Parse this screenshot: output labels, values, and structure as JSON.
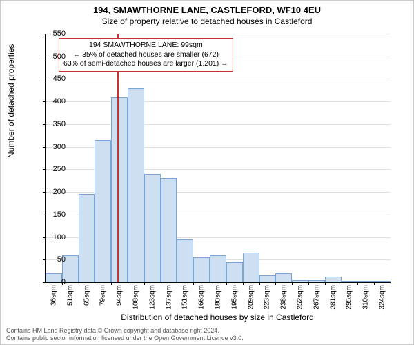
{
  "title_line1": "194, SMAWTHORNE LANE, CASTLEFORD, WF10 4EU",
  "title_line2": "Size of property relative to detached houses in Castleford",
  "ylabel": "Number of detached properties",
  "xlabel": "Distribution of detached houses by size in Castleford",
  "info": {
    "line1": "194 SMAWTHORNE LANE: 99sqm",
    "line2": "← 35% of detached houses are smaller (672)",
    "line3": "63% of semi-detached houses are larger (1,201) →"
  },
  "footer": {
    "line1": "Contains HM Land Registry data © Crown copyright and database right 2024.",
    "line2": "Contains public sector information licensed under the Open Government Licence v3.0."
  },
  "chart": {
    "type": "histogram",
    "ylim": [
      0,
      550
    ],
    "ytick_step": 50,
    "bar_fill": "#cedff1",
    "bar_border": "#7aa3d6",
    "ref_line_color": "#c83232",
    "grid_color": "#e0e0e0",
    "background_color": "#ffffff",
    "ref_value_sqm": 99,
    "x_start": 36,
    "x_step": 14.4,
    "categories": [
      "36sqm",
      "51sqm",
      "65sqm",
      "79sqm",
      "94sqm",
      "108sqm",
      "123sqm",
      "137sqm",
      "151sqm",
      "166sqm",
      "180sqm",
      "195sqm",
      "209sqm",
      "223sqm",
      "238sqm",
      "252sqm",
      "267sqm",
      "281sqm",
      "295sqm",
      "310sqm",
      "324sqm"
    ],
    "values": [
      20,
      60,
      195,
      315,
      410,
      430,
      240,
      230,
      95,
      55,
      60,
      45,
      65,
      15,
      20,
      5,
      5,
      12,
      3,
      2,
      2
    ]
  }
}
